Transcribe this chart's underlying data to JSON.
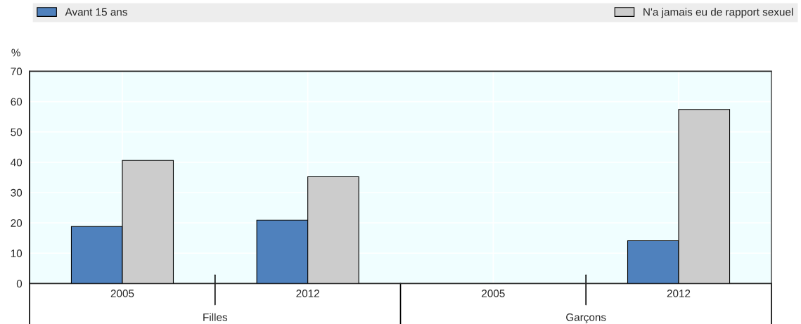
{
  "chart_data": {
    "type": "bar",
    "ylabel": "%",
    "categories": [
      "2005",
      "2012",
      "2005",
      "2012"
    ],
    "series": [
      {
        "name": "Avant 15 ans",
        "color": "#4f81bd",
        "values": [
          18.8,
          20.9,
          null,
          14.1
        ]
      },
      {
        "name": "N'a jamais eu de rapport sexuel",
        "color": "#cccccc",
        "values": [
          40.6,
          35.2,
          null,
          57.4
        ]
      }
    ],
    "annotations": [
      "Filles",
      "Garçons"
    ],
    "ylim": [
      0,
      70
    ],
    "yticks": [
      0,
      10,
      20,
      30,
      40,
      50,
      60,
      70
    ],
    "grid": true,
    "legend": "top"
  }
}
